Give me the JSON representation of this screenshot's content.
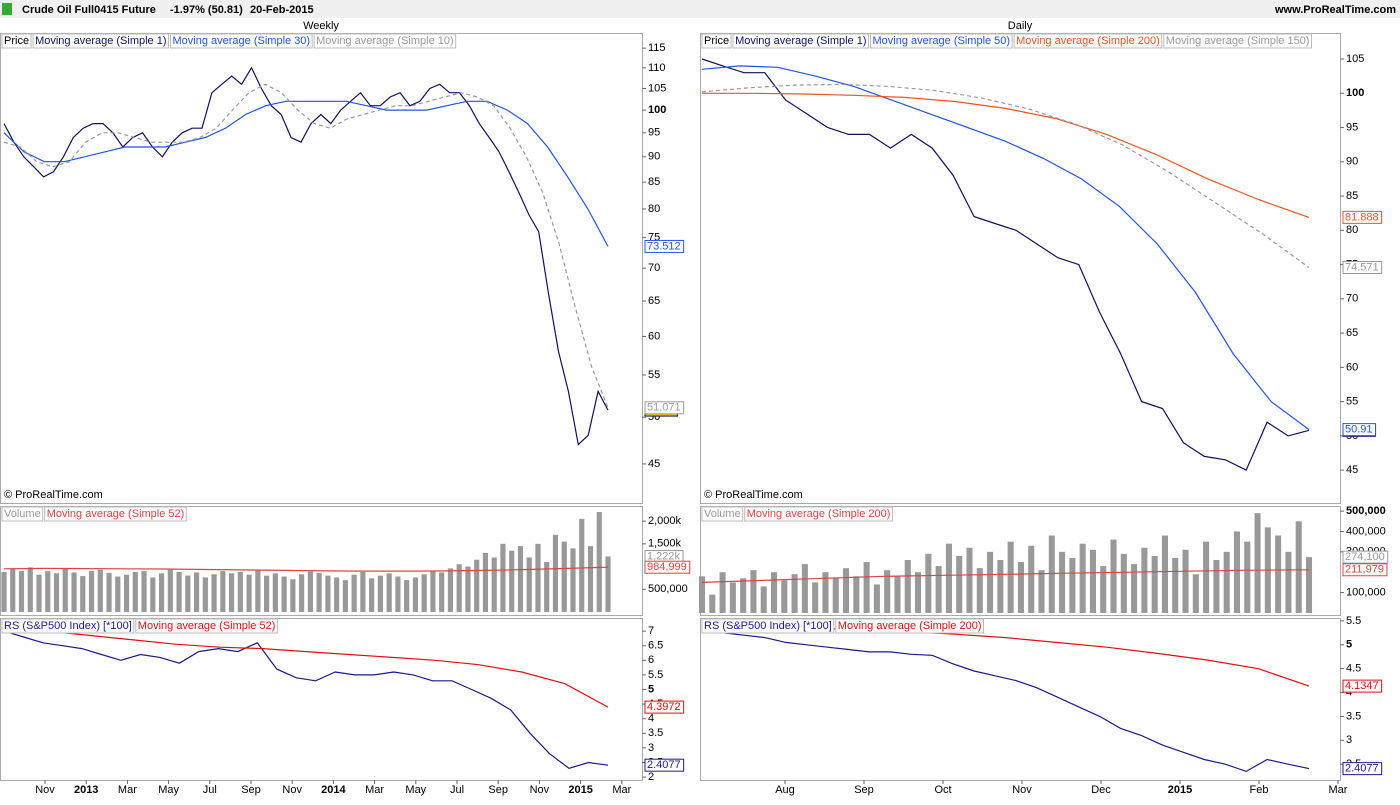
{
  "header": {
    "symbol": "Crude Oil Full0415 Future",
    "change": "-1.97% (50.81)",
    "date": "20-Feb-2015",
    "site": "www.ProRealTime.com"
  },
  "chart_data": [
    {
      "type": "line",
      "title": "Weekly",
      "indicator": "Price",
      "watermark": "© ProRealTime.com",
      "log": true,
      "ylim": [
        41.2,
        119
      ],
      "yticks": [
        45,
        50,
        55,
        60,
        65,
        70,
        75,
        80,
        85,
        90,
        95,
        100,
        105,
        110,
        115
      ],
      "major_tick": 100,
      "series": [
        {
          "name": "Moving average (Simple 1)",
          "color": "#101060",
          "tag_fill": "#f5c400",
          "values": [
            97,
            93,
            90,
            88,
            86,
            87,
            90,
            94,
            96,
            97,
            97,
            95,
            92,
            94,
            95,
            92,
            90,
            93,
            95,
            96,
            96,
            104,
            106,
            108,
            106,
            110,
            105,
            101,
            99,
            94,
            93,
            97,
            99,
            97,
            100,
            102,
            104,
            101,
            101,
            103,
            104,
            101,
            102,
            105,
            106,
            104,
            104,
            101,
            97,
            94,
            91,
            87,
            83,
            79,
            76,
            66,
            58,
            53,
            47,
            48,
            53,
            50.81
          ]
        },
        {
          "name": "Moving average (Simple 30)",
          "color": "#2255dd",
          "values": [
            95,
            91,
            89,
            89,
            90,
            91,
            92,
            92,
            92,
            93,
            94,
            96,
            99,
            101,
            102,
            102,
            102,
            102,
            101,
            100,
            100,
            100,
            101,
            102,
            102,
            100,
            97,
            92,
            86,
            80,
            73.512
          ]
        },
        {
          "name": "Moving average (Simple 10)",
          "color": "#999999",
          "dash": true,
          "values": [
            93,
            92,
            89,
            88,
            89,
            93,
            95,
            95,
            94,
            93,
            93,
            93,
            94,
            96,
            100,
            104,
            106,
            104,
            100,
            97,
            96,
            98,
            99,
            100,
            101,
            101,
            102,
            103,
            104,
            103,
            101,
            96,
            90,
            83,
            74,
            64,
            56,
            51.071
          ]
        }
      ]
    },
    {
      "type": "bar",
      "indicator": "Volume",
      "ylim": [
        -67000,
        2333000
      ],
      "yticks": [
        {
          "value": 500000,
          "label": "500,000"
        },
        {
          "value": 1500000,
          "label": "1,500k"
        },
        {
          "value": 2000000,
          "label": "2,000k"
        }
      ],
      "series": [
        {
          "name": "Volume",
          "type": "bar",
          "color": "#999999",
          "tag": "1,222k",
          "values": [
            880000,
            950000,
            900000,
            980000,
            820000,
            900000,
            850000,
            950000,
            870000,
            790000,
            900000,
            930000,
            860000,
            780000,
            820000,
            880000,
            900000,
            760000,
            850000,
            930000,
            880000,
            800000,
            870000,
            760000,
            830000,
            900000,
            850000,
            880000,
            820000,
            920000,
            800000,
            850000,
            780000,
            720000,
            830000,
            890000,
            860000,
            800000,
            760000,
            700000,
            820000,
            880000,
            740000,
            800000,
            850000,
            780000,
            700000,
            760000,
            830000,
            900000,
            870000,
            960000,
            1050000,
            1000000,
            1150000,
            1300000,
            1200000,
            1500000,
            1350000,
            1450000,
            1200000,
            1500000,
            1100000,
            1700000,
            1550000,
            1400000,
            2050000,
            1450000,
            2200000,
            1222000
          ]
        },
        {
          "name": "Moving average (Simple 52)",
          "type": "line",
          "color": "#dd4444",
          "tag": "984,999",
          "values": [
            950000,
            960000,
            955000,
            950000,
            945000,
            935000,
            925000,
            915000,
            905000,
            900000,
            900000,
            905000,
            915000,
            935000,
            960000,
            984999
          ]
        }
      ]
    },
    {
      "type": "line",
      "indicator": "RS (S&P500 Index) [*100]",
      "ylim": [
        1.9,
        7.45
      ],
      "yticks": [
        2,
        2.5,
        3,
        3.5,
        4,
        4.5,
        5,
        5.5,
        6,
        6.5,
        7
      ],
      "major_tick": 5,
      "x_labels": [
        "Nov",
        "2013",
        "Mar",
        "May",
        "Jul",
        "Sep",
        "Nov",
        "2014",
        "Mar",
        "May",
        "Jul",
        "Sep",
        "Nov",
        "2015",
        "Mar"
      ],
      "series": [
        {
          "name": "RS (S&P500 Index) [*100]",
          "legend": false,
          "color": "#1a1a8a",
          "values": [
            7.0,
            6.8,
            6.6,
            6.5,
            6.4,
            6.2,
            6.0,
            6.2,
            6.1,
            5.9,
            6.3,
            6.4,
            6.3,
            6.6,
            5.7,
            5.4,
            5.3,
            5.6,
            5.5,
            5.5,
            5.6,
            5.5,
            5.3,
            5.3,
            5.0,
            4.7,
            4.3,
            3.5,
            2.8,
            2.3,
            2.5,
            2.4077
          ]
        },
        {
          "name": "Moving average (Simple 52)",
          "color": "#dd1111",
          "values": [
            7.2,
            7.0,
            6.85,
            6.7,
            6.55,
            6.45,
            6.4,
            6.3,
            6.2,
            6.1,
            6.0,
            5.85,
            5.6,
            5.2,
            4.3972
          ]
        }
      ]
    },
    {
      "type": "line",
      "title": "Daily",
      "indicator": "Price",
      "watermark": "© ProRealTime.com",
      "log": false,
      "ylim": [
        40.2,
        108.8
      ],
      "yticks": [
        45,
        50,
        55,
        60,
        65,
        70,
        75,
        80,
        85,
        90,
        95,
        100,
        105
      ],
      "major_tick": 100,
      "series": [
        {
          "name": "Moving average (Simple 1)",
          "color": "#101060",
          "tag_fill": "#f5c400",
          "values": [
            105,
            104,
            103,
            103,
            99,
            97,
            95,
            94,
            94,
            92,
            94,
            92,
            88,
            82,
            81,
            80,
            78,
            76,
            75,
            68,
            62,
            55,
            54,
            49,
            47,
            46.5,
            45,
            52,
            50,
            50.81
          ]
        },
        {
          "name": "Moving average (Simple 50)",
          "color": "#2255dd",
          "values": [
            103.5,
            104,
            103.8,
            102.5,
            101,
            99,
            97,
            95,
            93,
            90.5,
            87.5,
            83.5,
            78,
            71,
            62,
            55,
            50.91
          ]
        },
        {
          "name": "Moving average (Simple 200)",
          "color": "#ee5522",
          "values": [
            100,
            100,
            99.9,
            99.7,
            99.4,
            98.8,
            97.8,
            96.3,
            94,
            91,
            87.5,
            84.5,
            81.888
          ]
        },
        {
          "name": "Moving average (Simple 150)",
          "color": "#999999",
          "dash": true,
          "values": [
            100.2,
            100.8,
            101.2,
            101.3,
            101,
            100.4,
            99.3,
            97.7,
            95.5,
            92.5,
            88.5,
            84,
            79.5,
            74.571
          ]
        }
      ]
    },
    {
      "type": "bar",
      "indicator": "Volume",
      "ylim": [
        -10000,
        525000
      ],
      "yticks": [
        {
          "value": 100000,
          "label": "100,000"
        },
        {
          "value": 300000,
          "label": "300,000"
        },
        {
          "value": 400000,
          "label": "400,000"
        },
        {
          "value": 500000,
          "label": "500,000"
        }
      ],
      "major_tick": 500000,
      "series": [
        {
          "name": "Volume",
          "type": "bar",
          "color": "#999999",
          "tag": "274,100",
          "values": [
            180000,
            90000,
            200000,
            150000,
            170000,
            210000,
            130000,
            200000,
            160000,
            190000,
            240000,
            150000,
            200000,
            170000,
            220000,
            180000,
            250000,
            140000,
            210000,
            180000,
            260000,
            200000,
            290000,
            230000,
            340000,
            280000,
            320000,
            220000,
            300000,
            260000,
            350000,
            250000,
            330000,
            210000,
            380000,
            300000,
            270000,
            340000,
            310000,
            230000,
            360000,
            290000,
            240000,
            320000,
            280000,
            380000,
            270000,
            310000,
            190000,
            350000,
            260000,
            300000,
            400000,
            350000,
            490000,
            420000,
            380000,
            300000,
            450000,
            274100
          ]
        },
        {
          "name": "Moving average (Simple 200)",
          "type": "line",
          "color": "#dd4444",
          "tag": "211,979",
          "values": [
            150000,
            160000,
            170000,
            180000,
            185000,
            190000,
            195000,
            200000,
            205000,
            210000,
            211979
          ]
        }
      ]
    },
    {
      "type": "line",
      "indicator": "RS (S&P500 Index) [*100]",
      "ylim": [
        2.17,
        5.56
      ],
      "yticks": [
        2.5,
        3,
        3.5,
        4,
        4.5,
        5,
        5.5
      ],
      "major_tick": 5,
      "x_labels": [
        "Aug",
        "Sep",
        "Oct",
        "Nov",
        "Dec",
        "2015",
        "Feb",
        "Mar"
      ],
      "series": [
        {
          "name": "RS (S&P500 Index) [*100]",
          "legend": false,
          "color": "#1a1a8a",
          "values": [
            5.3,
            5.25,
            5.2,
            5.15,
            5.05,
            5.0,
            4.95,
            4.9,
            4.85,
            4.85,
            4.8,
            4.78,
            4.6,
            4.45,
            4.35,
            4.25,
            4.1,
            3.9,
            3.7,
            3.5,
            3.25,
            3.1,
            2.9,
            2.75,
            2.6,
            2.5,
            2.35,
            2.6,
            2.5,
            2.4077
          ]
        },
        {
          "name": "Moving average (Simple 200)",
          "color": "#dd1111",
          "values": [
            5.4,
            5.38,
            5.35,
            5.32,
            5.28,
            5.22,
            5.15,
            5.05,
            4.95,
            4.82,
            4.68,
            4.5,
            4.1347
          ]
        }
      ]
    }
  ]
}
